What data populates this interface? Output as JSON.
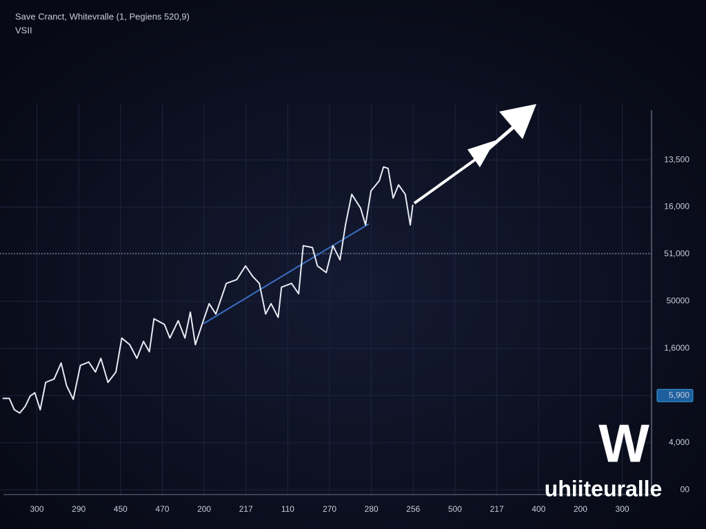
{
  "chart_data": {
    "type": "line",
    "title": "Save Cranct, Whitevralle (1, Pegiens 520,9)",
    "subtitle": "VSII",
    "xlim": [
      -0.8,
      14.7
    ],
    "ylim": [
      -0.1,
      8.2
    ],
    "xticks": [
      {
        "value": 0,
        "label": "300"
      },
      {
        "value": 1,
        "label": "290"
      },
      {
        "value": 2,
        "label": "450"
      },
      {
        "value": 3,
        "label": "470"
      },
      {
        "value": 4,
        "label": "200"
      },
      {
        "value": 5,
        "label": "217"
      },
      {
        "value": 6,
        "label": "110"
      },
      {
        "value": 7,
        "label": "270"
      },
      {
        "value": 8,
        "label": "280"
      },
      {
        "value": 9,
        "label": "256"
      },
      {
        "value": 10,
        "label": "500"
      },
      {
        "value": 11,
        "label": "217"
      },
      {
        "value": 12,
        "label": "400"
      },
      {
        "value": 13,
        "label": "200"
      },
      {
        "value": 14,
        "label": "300"
      }
    ],
    "yticks": [
      {
        "value": 7,
        "label": "13,500"
      },
      {
        "value": 6,
        "label": "16,000"
      },
      {
        "value": 5,
        "label": "51,000"
      },
      {
        "value": 4,
        "label": "50000"
      },
      {
        "value": 3,
        "label": "1,6000"
      },
      {
        "value": 2,
        "label": "5,900"
      },
      {
        "value": 1,
        "label": "4,000"
      },
      {
        "value": 0,
        "label": "00"
      }
    ],
    "highlight_tick": 5,
    "grid": true,
    "series": [
      {
        "color": "#e8ecf4",
        "x": [
          -0.82,
          -0.66,
          -0.54,
          -0.41,
          -0.28,
          -0.16,
          -0.05,
          0.08,
          0.21,
          0.41,
          0.58,
          0.71,
          0.87,
          1.04,
          1.24,
          1.4,
          1.53,
          1.7,
          1.89,
          2.03,
          2.22,
          2.39,
          2.55,
          2.69,
          2.8,
          3.05,
          3.18,
          3.38,
          3.54,
          3.67,
          3.79,
          3.95,
          4.12,
          4.28,
          4.53,
          4.78,
          4.99,
          5.16,
          5.32,
          5.47,
          5.6,
          5.77,
          5.85,
          6.09,
          6.26,
          6.37,
          6.59,
          6.71,
          6.92,
          7.08,
          7.25,
          7.38,
          7.53,
          7.74,
          7.86,
          7.99,
          8.19,
          8.29,
          8.4,
          8.52,
          8.65,
          8.81,
          8.93,
          8.99
        ],
        "values": [
          1.94,
          1.94,
          1.7,
          1.63,
          1.77,
          1.99,
          2.06,
          1.7,
          2.28,
          2.35,
          2.69,
          2.21,
          1.92,
          2.64,
          2.71,
          2.5,
          2.79,
          2.28,
          2.5,
          3.22,
          3.08,
          2.79,
          3.15,
          2.93,
          3.63,
          3.51,
          3.22,
          3.59,
          3.22,
          3.77,
          3.08,
          3.51,
          3.95,
          3.73,
          4.38,
          4.46,
          4.75,
          4.53,
          4.38,
          3.73,
          3.95,
          3.66,
          4.3,
          4.38,
          4.16,
          5.18,
          5.14,
          4.75,
          4.61,
          5.18,
          4.88,
          5.62,
          6.27,
          5.98,
          5.62,
          6.34,
          6.56,
          6.85,
          6.82,
          6.19,
          6.47,
          6.27,
          5.62,
          6.05
        ]
      }
    ]
  },
  "logo": {
    "mark": "W",
    "text": "uhiiteuralle"
  }
}
